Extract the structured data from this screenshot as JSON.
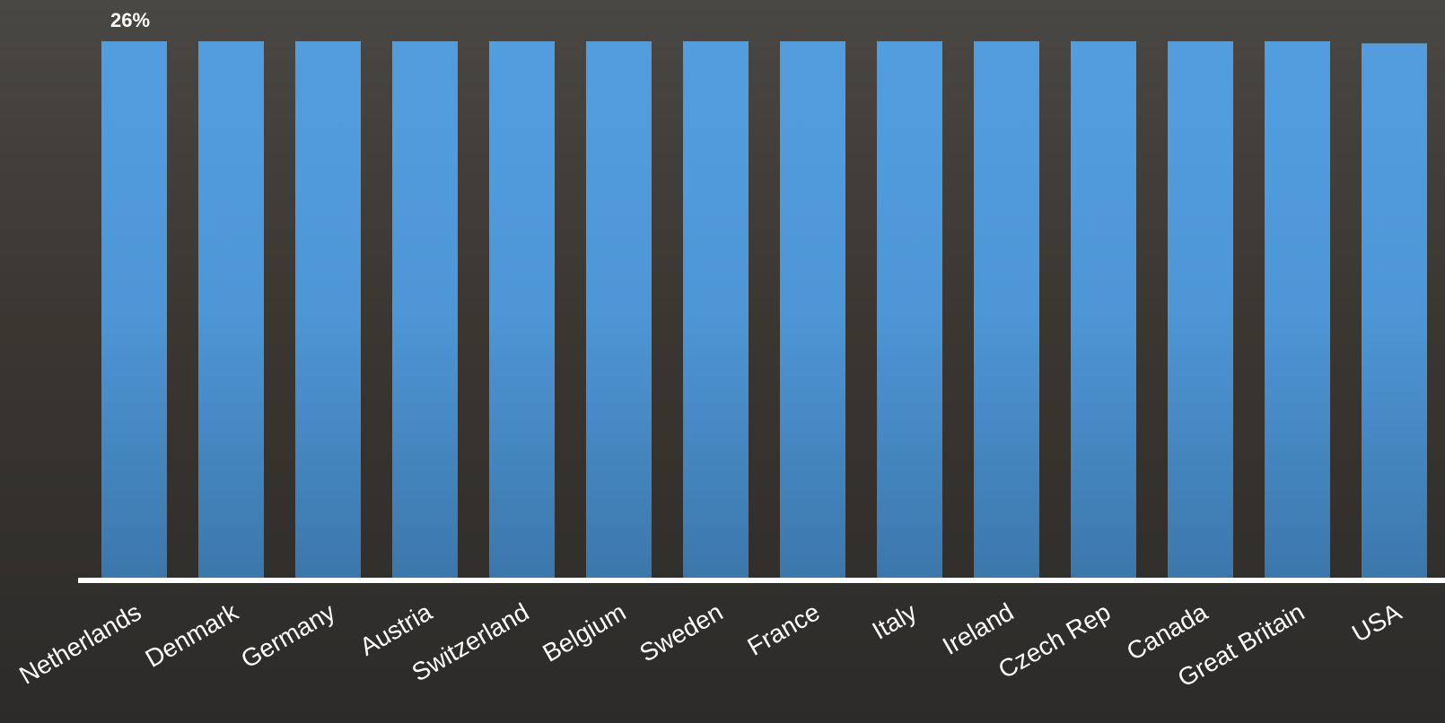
{
  "chart_data": {
    "type": "bar",
    "categories": [
      "Netherlands",
      "Denmark",
      "Germany",
      "Austria",
      "Switzerland",
      "Belgium",
      "Sweden",
      "France",
      "Italy",
      "Ireland",
      "Czech Rep",
      "Canada",
      "Great Britain",
      "USA"
    ],
    "values": [
      26,
      26,
      26,
      26,
      26,
      26,
      26,
      26,
      26,
      26,
      26,
      26,
      26,
      25.9
    ],
    "value_labels": [
      "26%",
      null,
      null,
      null,
      null,
      null,
      null,
      null,
      null,
      null,
      null,
      null,
      null,
      null
    ],
    "color": "#4f9be0"
  }
}
